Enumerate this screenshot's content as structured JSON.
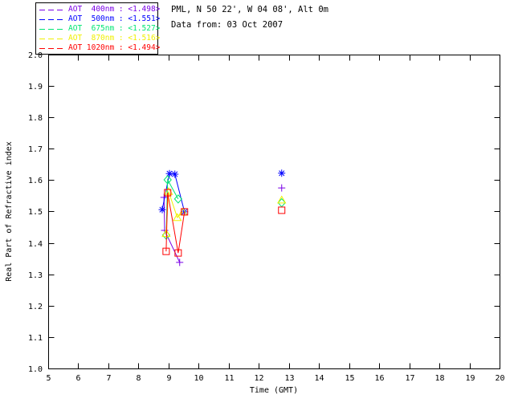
{
  "header": {
    "location_line": "PML, N 50 22', W 04 08', Alt 0m",
    "date_line": "Data from: 03 Oct 2007"
  },
  "legend": {
    "entries": [
      {
        "label": "AOT  400nm : <1.498>",
        "wavelength": "400nm",
        "mean": 1.498,
        "color": "#7a00e6",
        "marker": "plus"
      },
      {
        "label": "AOT  500nm : <1.551>",
        "wavelength": "500nm",
        "mean": 1.551,
        "color": "#0000ff",
        "marker": "asterisk"
      },
      {
        "label": "AOT  675nm : <1.527>",
        "wavelength": "675nm",
        "mean": 1.527,
        "color": "#00e673",
        "marker": "diamond"
      },
      {
        "label": "AOT  870nm : <1.516>",
        "wavelength": "870nm",
        "mean": 1.516,
        "color": "#f0f000",
        "marker": "triangle"
      },
      {
        "label": "AOT 1020nm : <1.494>",
        "wavelength": "1020nm",
        "mean": 1.494,
        "color": "#ff0000",
        "marker": "square"
      }
    ]
  },
  "chart_data": {
    "type": "line",
    "title": "",
    "xlabel": "Time (GMT)",
    "ylabel": "Real Part of Refractive index",
    "xlim": [
      5,
      20
    ],
    "xtick_step": 1,
    "ylim": [
      1.0,
      2.0
    ],
    "ytick_step": 0.1,
    "grid": false,
    "legend_position": "top-left-outside",
    "frame_color": "#000000",
    "series": [
      {
        "id": "aot-400nm",
        "name": "AOT 400nm",
        "mean": 1.498,
        "color": "#7a00e6",
        "marker": "plus",
        "segments": [
          [
            [
              8.85,
              1.545
            ],
            [
              8.87,
              1.44
            ],
            [
              9.37,
              1.338
            ]
          ]
        ],
        "lone_points": [
          [
            12.76,
            1.575
          ]
        ]
      },
      {
        "id": "aot-500nm",
        "name": "AOT 500nm",
        "mean": 1.551,
        "color": "#0000ff",
        "marker": "asterisk",
        "segments": [
          [
            [
              8.79,
              1.506
            ],
            [
              9.03,
              1.621
            ],
            [
              9.21,
              1.619
            ],
            [
              9.53,
              1.499
            ]
          ]
        ],
        "lone_points": [
          [
            12.76,
            1.622
          ]
        ]
      },
      {
        "id": "aot-675nm",
        "name": "AOT 675nm",
        "mean": 1.527,
        "color": "#00e673",
        "marker": "diamond",
        "segments": [
          [
            [
              8.92,
              1.425
            ],
            [
              8.97,
              1.601
            ],
            [
              9.32,
              1.54
            ]
          ]
        ],
        "lone_points": [
          [
            12.76,
            1.528
          ]
        ]
      },
      {
        "id": "aot-870nm",
        "name": "AOT 870nm",
        "mean": 1.516,
        "color": "#f0f000",
        "marker": "triangle",
        "segments": [
          [
            [
              8.92,
              1.43
            ],
            [
              9.0,
              1.564
            ],
            [
              9.29,
              1.481
            ],
            [
              9.48,
              1.499
            ]
          ]
        ],
        "lone_points": [
          [
            12.76,
            1.537
          ]
        ]
      },
      {
        "id": "aot-1020nm",
        "name": "AOT 1020nm",
        "mean": 1.494,
        "color": "#ff0000",
        "marker": "square",
        "segments": [
          [
            [
              8.92,
              1.373
            ],
            [
              8.97,
              1.56
            ],
            [
              9.32,
              1.368
            ],
            [
              9.53,
              1.499
            ]
          ]
        ],
        "lone_points": [
          [
            12.76,
            1.504
          ]
        ]
      }
    ]
  }
}
